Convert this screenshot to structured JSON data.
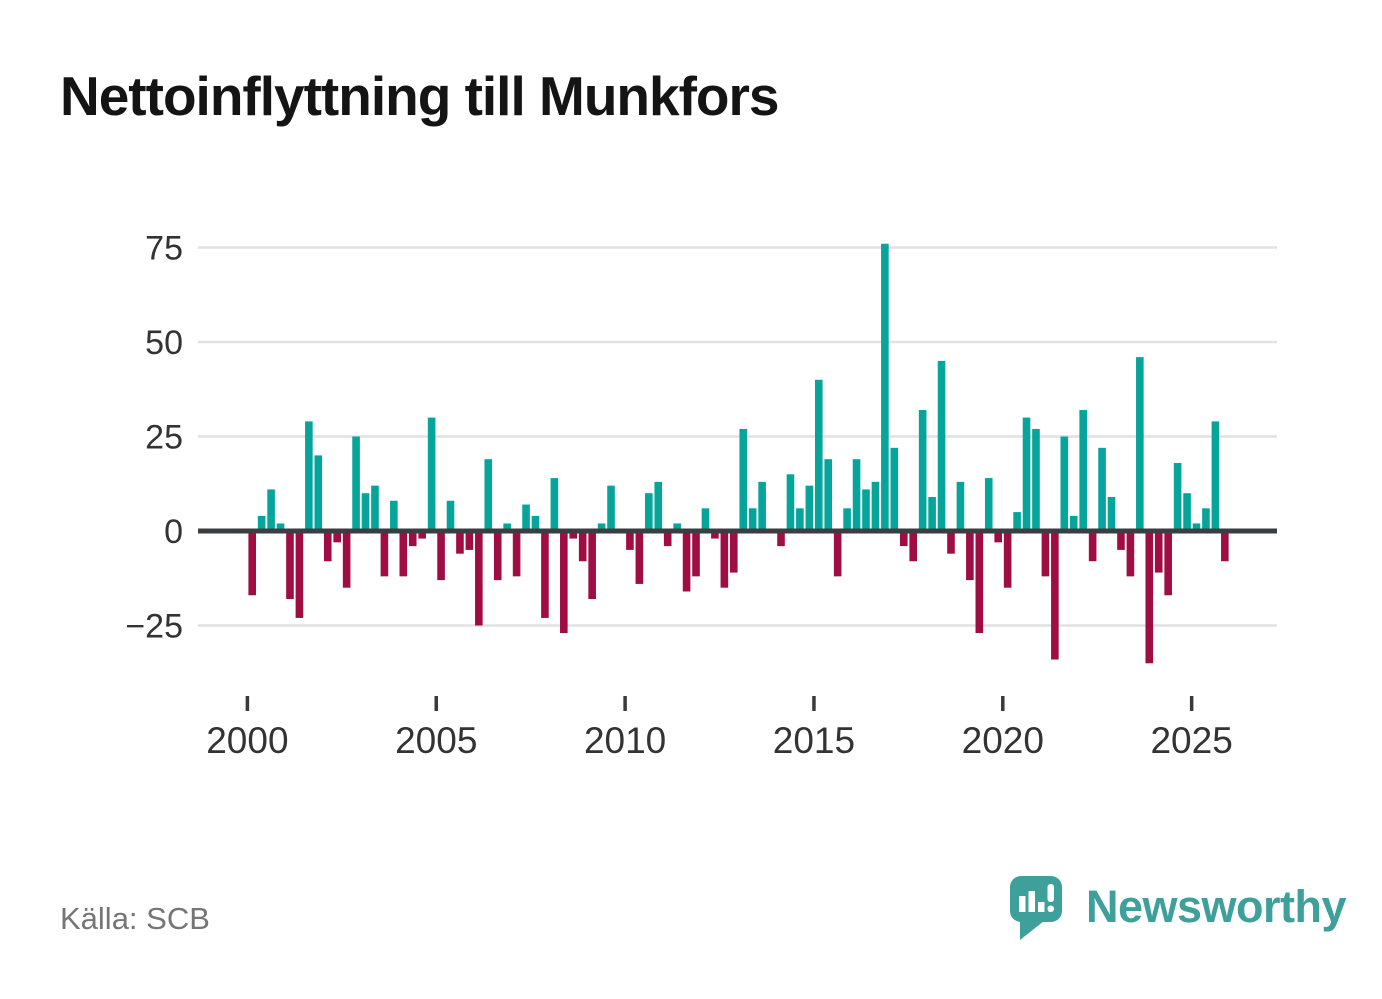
{
  "title": "Nettoinflyttning till Munkfors",
  "footer": {
    "source": "Källa: SCB"
  },
  "branding": {
    "wordmark": "Newsworthy",
    "icon": "speech-bubble-bar-chart-icon",
    "brand_color": "#3EA09B"
  },
  "colors": {
    "positive_bar": "#06A59B",
    "negative_bar": "#A00D43",
    "axis_line": "#3B3E40",
    "gridline": "#E1E1E1",
    "tick_mark": "#3A3A3A",
    "tick_label": "#333333",
    "title_text": "#141414",
    "source_text": "#757575",
    "background": "#FFFFFF"
  },
  "chart_data": {
    "type": "bar",
    "title": "Nettoinflyttning till Munkfors",
    "source": "SCB",
    "x_resolution": "quarterly",
    "x_start_year": 2000,
    "periods_per_year": 4,
    "ylim": [
      -42,
      78
    ],
    "yticks": [
      75,
      50,
      25,
      0,
      -25
    ],
    "ytick_labels": [
      "75",
      "50",
      "25",
      "0",
      "−25"
    ],
    "xticks": [
      2000,
      2005,
      2010,
      2015,
      2020,
      2025
    ],
    "xtick_labels": [
      "2000",
      "2005",
      "2010",
      "2015",
      "2020",
      "2025"
    ],
    "grid": "horizontal",
    "legend": "none",
    "values": [
      -17,
      4,
      11,
      2,
      -18,
      -23,
      29,
      20,
      -8,
      -3,
      -15,
      25,
      10,
      12,
      -12,
      8,
      -12,
      -4,
      -2,
      30,
      -13,
      8,
      -6,
      -5,
      -25,
      19,
      -13,
      2,
      -12,
      7,
      4,
      -23,
      14,
      -27,
      -2,
      -8,
      -18,
      2,
      12,
      0,
      -5,
      -14,
      10,
      13,
      -4,
      2,
      -16,
      -12,
      6,
      -2,
      -15,
      -11,
      27,
      6,
      13,
      0,
      -4,
      15,
      6,
      12,
      40,
      19,
      -12,
      6,
      19,
      11,
      13,
      76,
      22,
      -4,
      -8,
      32,
      9,
      45,
      -6,
      13,
      -13,
      -27,
      14,
      -3,
      -15,
      5,
      30,
      27,
      -12,
      -34,
      25,
      4,
      32,
      -8,
      22,
      9,
      -5,
      -12,
      46,
      -35,
      -11,
      -17,
      18,
      10,
      2,
      6,
      29,
      -8
    ]
  }
}
